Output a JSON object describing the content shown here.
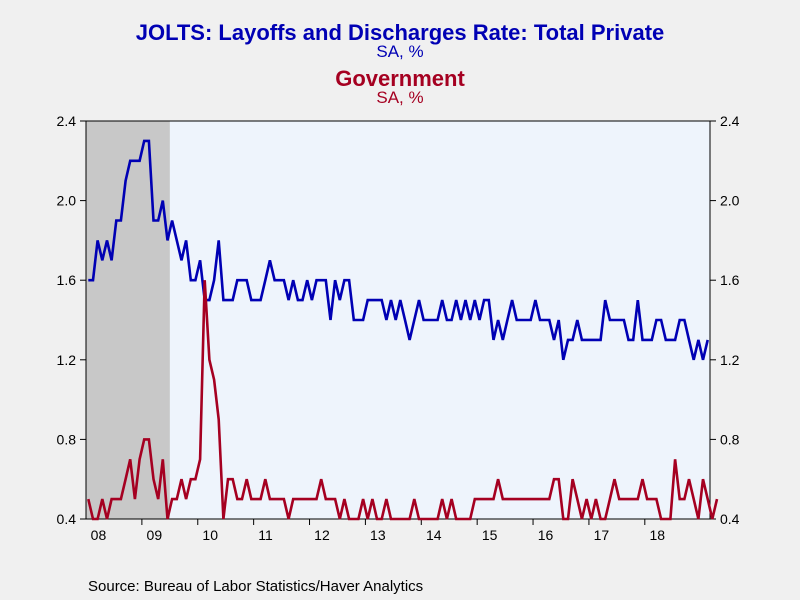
{
  "chart_data": {
    "type": "line",
    "title": "JOLTS: Layoffs and Discharges Rate: Total Private",
    "subtitle": "SA, %",
    "title2": "Government",
    "subtitle2": "SA, %",
    "source": "Source:  Bureau of Labor Statistics/Haver Analytics",
    "x_start": "2008-01",
    "x_ticks": [
      "08",
      "09",
      "10",
      "11",
      "12",
      "13",
      "14",
      "15",
      "16",
      "17",
      "18"
    ],
    "ylim": [
      0.4,
      2.4
    ],
    "y_ticks": [
      "0.4",
      "0.8",
      "1.2",
      "1.6",
      "2.0",
      "2.4"
    ],
    "recession_shade": {
      "from": "2008-01",
      "to": "2009-06",
      "color": "#c8c8c8"
    },
    "plot_background": "#eef4fc",
    "series": [
      {
        "name": "Total Private",
        "color": "#0000b4",
        "values": [
          1.6,
          1.6,
          1.8,
          1.7,
          1.8,
          1.7,
          1.9,
          1.9,
          2.1,
          2.2,
          2.2,
          2.2,
          2.3,
          2.3,
          1.9,
          1.9,
          2.0,
          1.8,
          1.9,
          1.8,
          1.7,
          1.8,
          1.6,
          1.6,
          1.7,
          1.5,
          1.5,
          1.6,
          1.8,
          1.5,
          1.5,
          1.5,
          1.6,
          1.6,
          1.6,
          1.5,
          1.5,
          1.5,
          1.6,
          1.7,
          1.6,
          1.6,
          1.6,
          1.5,
          1.6,
          1.5,
          1.5,
          1.6,
          1.5,
          1.6,
          1.6,
          1.6,
          1.4,
          1.6,
          1.5,
          1.6,
          1.6,
          1.4,
          1.4,
          1.4,
          1.5,
          1.5,
          1.5,
          1.5,
          1.4,
          1.5,
          1.4,
          1.5,
          1.4,
          1.3,
          1.4,
          1.5,
          1.4,
          1.4,
          1.4,
          1.4,
          1.5,
          1.4,
          1.4,
          1.5,
          1.4,
          1.5,
          1.4,
          1.5,
          1.4,
          1.5,
          1.5,
          1.3,
          1.4,
          1.3,
          1.4,
          1.5,
          1.4,
          1.4,
          1.4,
          1.4,
          1.5,
          1.4,
          1.4,
          1.4,
          1.3,
          1.4,
          1.2,
          1.3,
          1.3,
          1.4,
          1.3,
          1.3,
          1.3,
          1.3,
          1.3,
          1.5,
          1.4,
          1.4,
          1.4,
          1.4,
          1.3,
          1.3,
          1.5,
          1.3,
          1.3,
          1.3,
          1.4,
          1.4,
          1.3,
          1.3,
          1.3,
          1.4,
          1.4,
          1.3,
          1.2,
          1.3,
          1.2,
          1.3
        ]
      },
      {
        "name": "Government",
        "color": "#a50021",
        "values": [
          0.5,
          0.4,
          0.4,
          0.5,
          0.4,
          0.5,
          0.5,
          0.5,
          0.6,
          0.7,
          0.5,
          0.7,
          0.8,
          0.8,
          0.6,
          0.5,
          0.7,
          0.4,
          0.5,
          0.5,
          0.6,
          0.5,
          0.6,
          0.6,
          0.7,
          1.6,
          1.2,
          1.1,
          0.9,
          0.4,
          0.6,
          0.6,
          0.5,
          0.5,
          0.6,
          0.5,
          0.5,
          0.5,
          0.6,
          0.5,
          0.5,
          0.5,
          0.5,
          0.4,
          0.5,
          0.5,
          0.5,
          0.5,
          0.5,
          0.5,
          0.6,
          0.5,
          0.5,
          0.5,
          0.4,
          0.5,
          0.4,
          0.4,
          0.4,
          0.5,
          0.4,
          0.5,
          0.4,
          0.4,
          0.5,
          0.4,
          0.4,
          0.4,
          0.4,
          0.4,
          0.5,
          0.4,
          0.4,
          0.4,
          0.4,
          0.4,
          0.5,
          0.4,
          0.5,
          0.4,
          0.4,
          0.4,
          0.4,
          0.5,
          0.5,
          0.5,
          0.5,
          0.5,
          0.6,
          0.5,
          0.5,
          0.5,
          0.5,
          0.5,
          0.5,
          0.5,
          0.5,
          0.5,
          0.5,
          0.5,
          0.6,
          0.6,
          0.4,
          0.4,
          0.6,
          0.5,
          0.4,
          0.5,
          0.4,
          0.5,
          0.4,
          0.4,
          0.5,
          0.6,
          0.5,
          0.5,
          0.5,
          0.5,
          0.5,
          0.6,
          0.5,
          0.5,
          0.5,
          0.4,
          0.4,
          0.4,
          0.7,
          0.5,
          0.5,
          0.6,
          0.5,
          0.4,
          0.6,
          0.5,
          0.4,
          0.5
        ]
      }
    ]
  }
}
